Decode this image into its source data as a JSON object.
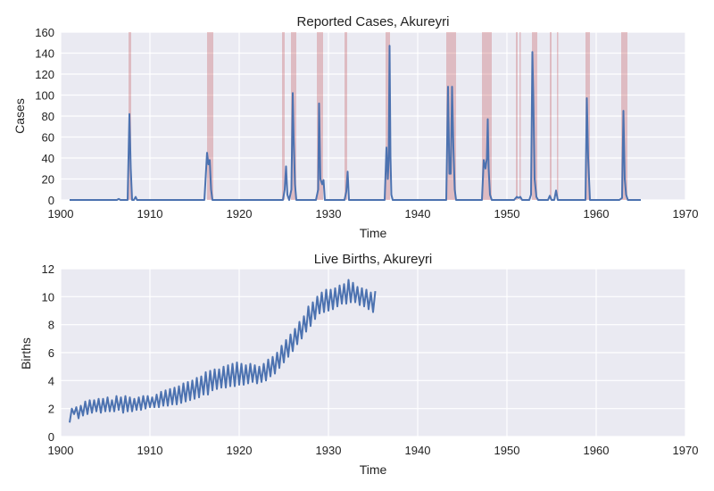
{
  "chart_data": [
    {
      "type": "line",
      "title": "Reported Cases, Akureyri",
      "xlabel": "Time",
      "ylabel": "Cases",
      "xlim": [
        1900,
        1970
      ],
      "ylim": [
        0,
        160
      ],
      "xticks": [
        "1900",
        "1910",
        "1920",
        "1930",
        "1940",
        "1950",
        "1960",
        "1970"
      ],
      "yticks": [
        "0",
        "20",
        "40",
        "60",
        "80",
        "100",
        "120",
        "140",
        "160"
      ],
      "grid": true,
      "colors": {
        "line": "#4c72b0",
        "shade": "#c44e52",
        "background": "#eaeaf2"
      },
      "shaded_periods": [
        [
          1907.6,
          1907.9
        ],
        [
          1916.4,
          1917.1
        ],
        [
          1924.8,
          1925.1
        ],
        [
          1925.8,
          1926.4
        ],
        [
          1928.7,
          1929.4
        ],
        [
          1931.8,
          1932.1
        ],
        [
          1936.4,
          1936.9
        ],
        [
          1943.2,
          1944.3
        ],
        [
          1947.2,
          1948.3
        ],
        [
          1951.0,
          1951.2
        ],
        [
          1951.4,
          1951.5
        ],
        [
          1952.8,
          1953.4
        ],
        [
          1954.8,
          1955.0
        ],
        [
          1955.6,
          1955.7
        ],
        [
          1958.8,
          1959.3
        ],
        [
          1962.8,
          1963.5
        ]
      ],
      "series": [
        {
          "values_x": [
            1901,
            1906.3,
            1906.5,
            1906.7,
            1907.5,
            1907.7,
            1907.85,
            1908.0,
            1908.2,
            1908.4,
            1908.55,
            1908.7,
            1916.1,
            1916.4,
            1916.55,
            1916.7,
            1916.85,
            1917.0,
            1917.2,
            1924.9,
            1925.1,
            1925.25,
            1925.4,
            1925.6,
            1925.85,
            1926.0,
            1926.1,
            1926.25,
            1926.4,
            1926.6,
            1928.6,
            1928.85,
            1928.95,
            1929.1,
            1929.3,
            1929.45,
            1929.6,
            1931.8,
            1932.0,
            1932.15,
            1932.3,
            1936.3,
            1936.5,
            1936.65,
            1936.75,
            1936.85,
            1936.95,
            1937.05,
            1937.2,
            1937.35,
            1943.2,
            1943.4,
            1943.55,
            1943.7,
            1943.85,
            1944.0,
            1944.15,
            1944.3,
            1944.5,
            1947.2,
            1947.4,
            1947.6,
            1947.75,
            1947.85,
            1947.95,
            1948.1,
            1948.3,
            1950.8,
            1951.1,
            1951.3,
            1951.5,
            1951.7,
            1952.5,
            1952.7,
            1952.85,
            1952.95,
            1953.1,
            1953.3,
            1953.5,
            1954.6,
            1954.8,
            1955.0,
            1955.3,
            1955.5,
            1955.7,
            1955.9,
            1958.6,
            1958.8,
            1958.95,
            1959.1,
            1959.3,
            1962.6,
            1962.9,
            1963.05,
            1963.2,
            1963.35,
            1963.55,
            1963.8,
            1965
          ],
          "values_y": [
            0,
            0,
            1,
            0,
            0,
            82,
            30,
            0,
            0,
            3,
            0,
            0,
            0,
            45,
            34,
            38,
            10,
            0,
            0,
            0,
            10,
            32,
            5,
            0,
            10,
            102,
            60,
            15,
            0,
            0,
            0,
            10,
            92,
            20,
            15,
            19,
            0,
            0,
            8,
            27,
            0,
            0,
            50,
            20,
            38,
            147,
            42,
            5,
            0,
            0,
            0,
            108,
            25,
            25,
            108,
            50,
            10,
            0,
            0,
            0,
            38,
            30,
            40,
            77,
            30,
            5,
            0,
            0,
            3,
            2,
            3,
            0,
            0,
            5,
            141,
            100,
            20,
            3,
            0,
            0,
            4,
            0,
            0,
            9,
            0,
            0,
            0,
            0,
            97,
            40,
            0,
            0,
            2,
            85,
            20,
            5,
            0,
            0,
            0
          ]
        }
      ]
    },
    {
      "type": "line",
      "title": "Live Births, Akureyri",
      "xlabel": "Time",
      "ylabel": "Births",
      "xlim": [
        1900,
        1970
      ],
      "ylim": [
        0,
        12
      ],
      "xticks": [
        "1900",
        "1910",
        "1920",
        "1930",
        "1940",
        "1950",
        "1960",
        "1970"
      ],
      "yticks": [
        "0",
        "2",
        "4",
        "6",
        "8",
        "10",
        "12"
      ],
      "grid": true,
      "colors": {
        "line": "#4c72b0",
        "background": "#eaeaf2"
      },
      "series": [
        {
          "x_start": 1901.0,
          "x_step": 0.25,
          "values": [
            1.0,
            2.0,
            1.6,
            2.1,
            1.3,
            2.2,
            1.5,
            2.5,
            1.6,
            2.6,
            1.7,
            2.6,
            1.8,
            2.7,
            1.7,
            2.7,
            1.8,
            2.8,
            1.8,
            2.6,
            1.8,
            2.9,
            1.9,
            2.8,
            1.7,
            2.9,
            1.8,
            2.8,
            1.8,
            2.7,
            1.9,
            2.8,
            1.9,
            2.9,
            2.0,
            2.9,
            2.1,
            2.8,
            2.1,
            3.0,
            2.1,
            3.2,
            2.2,
            3.3,
            2.2,
            3.4,
            2.3,
            3.5,
            2.3,
            3.6,
            2.4,
            3.8,
            2.5,
            3.9,
            2.6,
            4.0,
            2.7,
            4.2,
            2.8,
            4.3,
            3.0,
            4.6,
            3.0,
            4.7,
            3.3,
            4.8,
            3.4,
            4.8,
            3.5,
            5.0,
            3.5,
            5.1,
            3.6,
            5.2,
            3.6,
            5.3,
            3.7,
            5.2,
            3.7,
            5.1,
            3.8,
            5.2,
            3.9,
            5.1,
            3.8,
            5.0,
            3.9,
            5.2,
            4.0,
            5.5,
            4.3,
            5.7,
            4.5,
            6.0,
            4.9,
            6.5,
            5.3,
            6.9,
            5.7,
            7.3,
            6.1,
            7.7,
            6.6,
            8.2,
            7.0,
            8.6,
            7.5,
            9.3,
            7.9,
            9.6,
            8.4,
            10.0,
            8.8,
            10.3,
            8.9,
            10.5,
            9.0,
            10.5,
            9.1,
            10.6,
            9.3,
            10.8,
            9.5,
            10.9,
            9.5,
            11.2,
            9.6,
            11.0,
            9.6,
            10.7,
            9.4,
            10.6,
            9.3,
            10.5,
            9.1,
            10.3,
            8.9,
            10.4
          ]
        }
      ]
    }
  ]
}
